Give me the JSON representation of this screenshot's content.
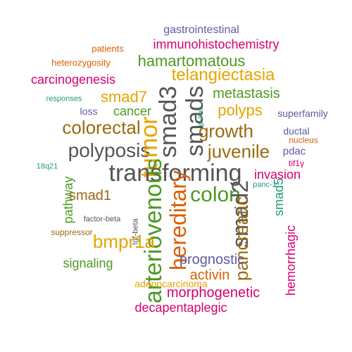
{
  "colors": {
    "background": "#ffffff",
    "purple": "#5f5aa2",
    "orange": "#d95f02",
    "magenta": "#d6006e",
    "green": "#4d9a22",
    "gold": "#e6a400",
    "brown": "#9b6a12",
    "gray": "#555555",
    "teal": "#1b9e77"
  },
  "words": [
    {
      "text": "gastrointestinal",
      "color": "purple",
      "rotate": 0
    },
    {
      "text": "patients",
      "color": "orange",
      "rotate": 0
    },
    {
      "text": "immunohistochemistry",
      "color": "magenta",
      "rotate": 0
    },
    {
      "text": "heterozygosity",
      "color": "orange",
      "rotate": 0
    },
    {
      "text": "hamartomatous",
      "color": "green",
      "rotate": 0
    },
    {
      "text": "carcinogenesis",
      "color": "magenta",
      "rotate": 0
    },
    {
      "text": "telangiectasia",
      "color": "gold",
      "rotate": 0
    },
    {
      "text": "responses",
      "color": "teal",
      "rotate": 0
    },
    {
      "text": "metastasis",
      "color": "green",
      "rotate": 0
    },
    {
      "text": "smad7",
      "color": "gold",
      "rotate": 0
    },
    {
      "text": "loss",
      "color": "purple",
      "rotate": 0
    },
    {
      "text": "cancer",
      "color": "green",
      "rotate": 0
    },
    {
      "text": "polyps",
      "color": "gold",
      "rotate": 0
    },
    {
      "text": "superfamily",
      "color": "purple",
      "rotate": 0
    },
    {
      "text": "colorectal",
      "color": "brown",
      "rotate": 0
    },
    {
      "text": "growth",
      "color": "brown",
      "rotate": 0
    },
    {
      "text": "ductal",
      "color": "purple",
      "rotate": 0
    },
    {
      "text": "smad3",
      "color": "gray",
      "rotate": -90
    },
    {
      "text": "smads",
      "color": "gray",
      "rotate": -90
    },
    {
      "text": "jp-hht",
      "color": "teal",
      "rotate": -90
    },
    {
      "text": "nucleus",
      "color": "orange",
      "rotate": 0
    },
    {
      "text": "polyposis",
      "color": "gray",
      "rotate": 0
    },
    {
      "text": "juvenile",
      "color": "brown",
      "rotate": 0
    },
    {
      "text": "pdac",
      "color": "purple",
      "rotate": 0
    },
    {
      "text": "tif1γ",
      "color": "magenta",
      "rotate": 0
    },
    {
      "text": "tumor",
      "color": "gold",
      "rotate": -90
    },
    {
      "text": "18q21",
      "color": "teal",
      "rotate": 0
    },
    {
      "text": "transforming",
      "color": "gray",
      "rotate": 0
    },
    {
      "text": "invasion",
      "color": "magenta",
      "rotate": 0
    },
    {
      "text": "panc-1",
      "color": "teal",
      "rotate": 0
    },
    {
      "text": "pathway",
      "color": "green",
      "rotate": -90
    },
    {
      "text": "smad1",
      "color": "brown",
      "rotate": 0
    },
    {
      "text": "colon",
      "color": "green",
      "rotate": 0
    },
    {
      "text": "smad5",
      "color": "teal",
      "rotate": -90
    },
    {
      "text": "factor-beta",
      "color": "gray",
      "rotate": 0
    },
    {
      "text": "smad2",
      "color": "gray",
      "rotate": -90
    },
    {
      "text": "hereditary",
      "color": "orange",
      "rotate": -90
    },
    {
      "text": "tgf-beta",
      "color": "gray",
      "rotate": -90
    },
    {
      "text": "arteriovenous",
      "color": "green",
      "rotate": -90
    },
    {
      "text": "suppressor",
      "color": "brown",
      "rotate": 0
    },
    {
      "text": "pancreatic",
      "color": "brown",
      "rotate": -90
    },
    {
      "text": "bmpr1a",
      "color": "gold",
      "rotate": 0
    },
    {
      "text": "prognostic",
      "color": "purple",
      "rotate": 0
    },
    {
      "text": "hemorrhagic",
      "color": "magenta",
      "rotate": -90
    },
    {
      "text": "signaling",
      "color": "green",
      "rotate": 0
    },
    {
      "text": "activin",
      "color": "orange",
      "rotate": 0
    },
    {
      "text": "adenocarcinoma",
      "color": "gold",
      "rotate": 0
    },
    {
      "text": "morphogenetic",
      "color": "magenta",
      "rotate": 0
    },
    {
      "text": "decapentaplegic",
      "color": "magenta",
      "rotate": 0
    }
  ]
}
